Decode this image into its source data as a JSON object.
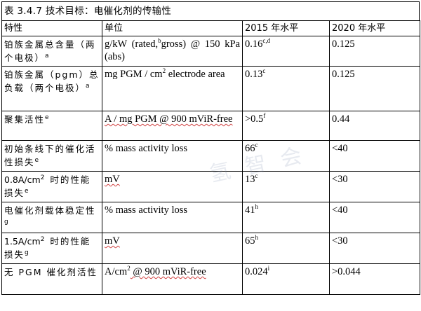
{
  "table": {
    "title": "表 3.4.7 技术目标：电催化剂的传输性",
    "headers": {
      "property": "特性",
      "unit": "单位",
      "status_2015": "2015 年水平",
      "target_2020": "2020 年水平"
    },
    "rows": [
      {
        "property": "铂族金属总含量（两个电极）",
        "property_sup": "a",
        "unit_a": "g/kW (rated,",
        "unit_sup": "b",
        "unit_b": "gross) @ 150 kPa (abs)",
        "val_2015": "0.16",
        "val_2015_sup": "c,d",
        "val_2020": "0.125"
      },
      {
        "property": "铂族金属（pgm）总负载（两个电极）",
        "property_sup": "a",
        "unit_a": "mg PGM / cm",
        "unit_sup": "2",
        "unit_b": " electrode area",
        "val_2015": "0.13",
        "val_2015_sup": "c",
        "val_2020": "0.125"
      },
      {
        "property": "聚集活性",
        "property_sup": "e",
        "unit_a": "A / mg PGM @ 900 mViR-free",
        "val_2015": ">0.5",
        "val_2015_sup": "f",
        "val_2020": "0.44"
      },
      {
        "property": "初始条线下的催化活性损失",
        "property_sup": "e",
        "unit_a": "% mass activity loss",
        "val_2015": "66",
        "val_2015_sup": "c",
        "val_2020": "<40"
      },
      {
        "property_a": "0.8A/cm",
        "property_mid_sup": "2",
        "property": "时的性能损失",
        "property_sup": "e",
        "unit_a": "mV",
        "val_2015": "13",
        "val_2015_sup": "c",
        "val_2020": "<30"
      },
      {
        "property": "电催化剂载体稳定性",
        "property_sup": "g",
        "unit_a": "% mass activity loss",
        "val_2015": "41",
        "val_2015_sup": "h",
        "val_2020": "<40"
      },
      {
        "property_a": "1.5A/cm",
        "property_mid_sup": "2",
        "property": "时的性能损失",
        "property_sup": "g",
        "unit_a": "mV",
        "val_2015": "65",
        "val_2015_sup": "h",
        "val_2020": "<30"
      },
      {
        "property": "无 PGM 催化剂活性",
        "unit_a": "A/cm",
        "unit_sup": "2",
        "unit_b": " @ 900 mViR-free",
        "val_2015": "0.024",
        "val_2015_sup": "i",
        "val_2020": ">0.044"
      }
    ]
  },
  "watermark": "氢 智 会"
}
